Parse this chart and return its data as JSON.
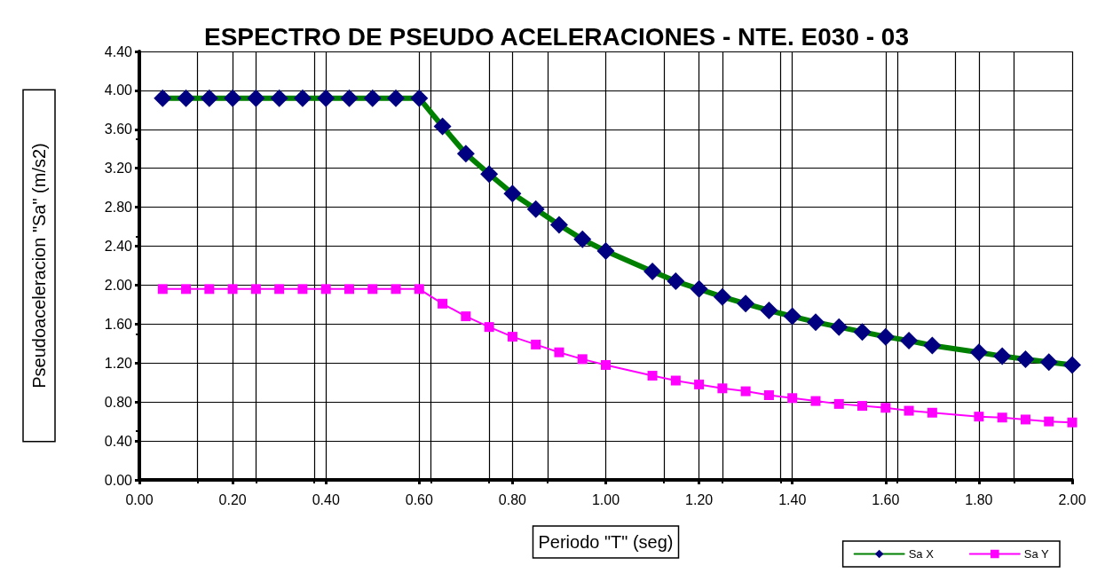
{
  "chart_data": {
    "type": "line",
    "title": "ESPECTRO DE PSEUDO ACELERACIONES - NTE. E030 - 03",
    "xlabel": "Periodo \"T\" (seg)",
    "ylabel": "Pseudoaceleracion \"Sa\" (m/s2)",
    "x": [
      0.05,
      0.1,
      0.15,
      0.2,
      0.25,
      0.3,
      0.35,
      0.4,
      0.45,
      0.5,
      0.55,
      0.6,
      0.65,
      0.7,
      0.75,
      0.8,
      0.85,
      0.9,
      0.95,
      1.0,
      1.1,
      1.15,
      1.2,
      1.25,
      1.3,
      1.35,
      1.4,
      1.45,
      1.5,
      1.55,
      1.6,
      1.65,
      1.7,
      1.8,
      1.85,
      1.9,
      1.95,
      2.0
    ],
    "series": [
      {
        "name": "Sa X",
        "color": "#008000",
        "marker": "diamond",
        "colors": [
          "#000080",
          "#000080",
          "#000080",
          "#000080",
          "#000080",
          "#000080",
          "#000080",
          "#000080",
          "#000080",
          "#000080",
          "#000080",
          "#000080",
          "#000080",
          "#000080",
          "#000080",
          "#000080",
          "#000080",
          "#000080",
          "#000080",
          "#000080",
          "#000080",
          "#000080",
          "#000080",
          "#000080",
          "#000080",
          "#000080",
          "#000080",
          "#000080",
          "#000080",
          "#000080",
          "#000080",
          "#000080",
          "#000080",
          "#000080",
          "#000080",
          "#000080",
          "#000080",
          "#000080"
        ],
        "values": [
          3.92,
          3.92,
          3.92,
          3.92,
          3.92,
          3.92,
          3.92,
          3.92,
          3.92,
          3.92,
          3.92,
          3.92,
          3.63,
          3.35,
          3.14,
          2.94,
          2.78,
          2.62,
          2.47,
          2.35,
          2.14,
          2.04,
          1.96,
          1.88,
          1.81,
          1.74,
          1.68,
          1.62,
          1.57,
          1.52,
          1.47,
          1.43,
          1.38,
          1.31,
          1.27,
          1.24,
          1.21,
          1.18
        ]
      },
      {
        "name": "Sa Y",
        "color": "#ff00ff",
        "marker": "square",
        "values": [
          1.96,
          1.96,
          1.96,
          1.96,
          1.96,
          1.96,
          1.96,
          1.96,
          1.96,
          1.96,
          1.96,
          1.96,
          1.81,
          1.68,
          1.57,
          1.47,
          1.39,
          1.31,
          1.24,
          1.18,
          1.07,
          1.02,
          0.98,
          0.94,
          0.91,
          0.87,
          0.84,
          0.81,
          0.78,
          0.76,
          0.74,
          0.71,
          0.69,
          0.65,
          0.64,
          0.62,
          0.6,
          0.59
        ]
      }
    ],
    "xlim": [
      0,
      2
    ],
    "xticks": [
      {
        "value": 0,
        "label": "0.00"
      },
      {
        "value": 0.2,
        "label": "0.20"
      },
      {
        "value": 0.4,
        "label": "0.40"
      },
      {
        "value": 0.6,
        "label": "0.60"
      },
      {
        "value": 0.8,
        "label": "0.80"
      },
      {
        "value": 1,
        "label": "1.00"
      },
      {
        "value": 1.2,
        "label": "1.20"
      },
      {
        "value": 1.4,
        "label": "1.40"
      },
      {
        "value": 1.6,
        "label": "1.60"
      },
      {
        "value": 1.8,
        "label": "1.80"
      },
      {
        "value": 2,
        "label": "2.00"
      }
    ],
    "ylim": [
      0,
      4.4
    ],
    "yticks": [
      {
        "value": 0,
        "label": "0.00"
      },
      {
        "value": 0.4,
        "label": "0.40"
      },
      {
        "value": 0.8,
        "label": "0.80"
      },
      {
        "value": 1.2,
        "label": "1.20"
      },
      {
        "value": 1.6,
        "label": "1.60"
      },
      {
        "value": 2,
        "label": "2.00"
      },
      {
        "value": 2.4,
        "label": "2.40"
      },
      {
        "value": 2.8,
        "label": "2.80"
      },
      {
        "value": 3.2,
        "label": "3.20"
      },
      {
        "value": 3.6,
        "label": "3.60"
      },
      {
        "value": 4,
        "label": "4.00"
      },
      {
        "value": 4.4,
        "label": "4.40"
      }
    ],
    "grid": true,
    "legend": "bottom right",
    "line_style": "solid"
  }
}
